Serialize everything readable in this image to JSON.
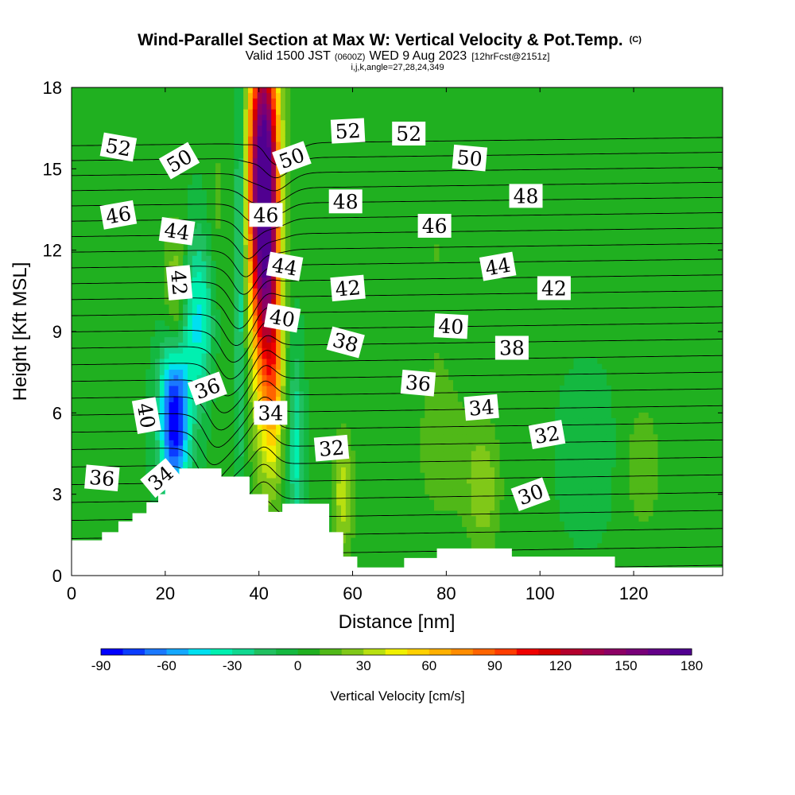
{
  "chart_data": {
    "type": "heatmap",
    "title": "Wind-Parallel Section at Max W: Vertical Velocity & Pot.Temp.",
    "title_mark": "(C)",
    "subtitle_main": "Valid 1500 JST",
    "subtitle_z": "(0600Z)",
    "subtitle_date": "WED 9 Aug 2023",
    "subtitle_fcst": "[12hrFcst@2151z]",
    "subtitle_ijk": "i,j,k,angle=27,28,24,349",
    "xlabel": "Distance [nm]",
    "ylabel": "Height [Kft MSL]",
    "xlim": [
      0,
      139
    ],
    "ylim": [
      0,
      18
    ],
    "x_ticks": [
      "0",
      "20",
      "40",
      "60",
      "80",
      "100",
      "120"
    ],
    "x_tick_values": [
      0,
      20,
      40,
      60,
      80,
      100,
      120
    ],
    "y_ticks": [
      "0",
      "3",
      "6",
      "9",
      "12",
      "15",
      "18"
    ],
    "y_tick_values": [
      0,
      3,
      6,
      9,
      12,
      15,
      18
    ],
    "colorbar": {
      "label": "Vertical Velocity [cm/s]",
      "tick_labels": [
        "-90",
        "-60",
        "-30",
        "0",
        "30",
        "60",
        "90",
        "120",
        "150",
        "180"
      ],
      "tick_values": [
        -90,
        -60,
        -30,
        0,
        30,
        60,
        90,
        120,
        150,
        180
      ],
      "min": -90,
      "max": 180,
      "step": 10,
      "colors": [
        "#0000ff",
        "#0a3cff",
        "#1a78ff",
        "#14a8ff",
        "#00e0f0",
        "#00f0b0",
        "#10d890",
        "#20c060",
        "#14b840",
        "#20b020",
        "#50b818",
        "#80c818",
        "#b8e010",
        "#f0f000",
        "#ffd000",
        "#ffb000",
        "#ff8c00",
        "#ff6400",
        "#ff3c00",
        "#f00000",
        "#d20000",
        "#b4002c",
        "#a0004c",
        "#8c0064",
        "#780078",
        "#640088",
        "#500090"
      ]
    },
    "background_velocity": 2,
    "velocity_features": [
      {
        "x": 22,
        "y": 5.8,
        "sx": 2.2,
        "sy": 2.0,
        "value": -95
      },
      {
        "x": 27,
        "y": 9.5,
        "sx": 3.0,
        "sy": 2.2,
        "value": -45
      },
      {
        "x": 36,
        "y": 12.5,
        "sx": 0.7,
        "sy": 6.0,
        "value": -35
      },
      {
        "x": 31,
        "y": 11.0,
        "sx": 1.5,
        "sy": 4.0,
        "value": 15
      },
      {
        "x": 22.5,
        "y": 10.0,
        "sx": 1.8,
        "sy": 2.0,
        "value": 40
      },
      {
        "x": 41,
        "y": 15.0,
        "sx": 2.2,
        "sy": 3.5,
        "value": 170
      },
      {
        "x": 41.5,
        "y": 10.0,
        "sx": 2.0,
        "sy": 4.0,
        "value": 80
      },
      {
        "x": 43.5,
        "y": 7.5,
        "sx": 1.2,
        "sy": 2.5,
        "value": 40
      },
      {
        "x": 48,
        "y": 4.5,
        "sx": 1.0,
        "sy": 2.5,
        "value": -35
      },
      {
        "x": 58,
        "y": 3.0,
        "sx": 1.5,
        "sy": 1.5,
        "value": 35
      },
      {
        "x": 88,
        "y": 3.2,
        "sx": 2.5,
        "sy": 1.6,
        "value": 25
      },
      {
        "x": 80,
        "y": 4.5,
        "sx": 5.0,
        "sy": 2.0,
        "value": 12
      },
      {
        "x": 110,
        "y": 4.5,
        "sx": 4.0,
        "sy": 2.0,
        "value": -10
      },
      {
        "x": 122,
        "y": 4.0,
        "sx": 3.0,
        "sy": 2.0,
        "value": 14
      },
      {
        "x": 78,
        "y": 12.0,
        "sx": 3.0,
        "sy": 5.0,
        "value": 8
      },
      {
        "x": 15,
        "y": 14.0,
        "sx": 3.0,
        "sy": 3.0,
        "value": 6
      }
    ],
    "terrain": [
      {
        "x": 0,
        "h": 1.3
      },
      {
        "x": 6.5,
        "h": 1.6
      },
      {
        "x": 10,
        "h": 2.0
      },
      {
        "x": 13,
        "h": 2.3
      },
      {
        "x": 16,
        "h": 2.7
      },
      {
        "x": 18.5,
        "h": 3.0
      },
      {
        "x": 20,
        "h": 3.6
      },
      {
        "x": 23,
        "h": 3.95
      },
      {
        "x": 32,
        "h": 3.65
      },
      {
        "x": 38,
        "h": 3.0
      },
      {
        "x": 42,
        "h": 2.35
      },
      {
        "x": 45,
        "h": 2.65
      },
      {
        "x": 55,
        "h": 1.6
      },
      {
        "x": 58,
        "h": 0.7
      },
      {
        "x": 61,
        "h": 0.3
      },
      {
        "x": 71,
        "h": 0.65
      },
      {
        "x": 78,
        "h": 1.0
      },
      {
        "x": 94,
        "h": 0.7
      },
      {
        "x": 116,
        "h": 0.3
      },
      {
        "x": 139,
        "h": 0.3
      }
    ],
    "isentropes": {
      "levels": [
        27,
        28,
        29,
        30,
        31,
        32,
        33,
        34,
        35,
        36,
        37,
        38,
        39,
        40,
        41,
        42,
        43,
        44,
        45,
        46,
        47,
        48,
        49,
        50,
        51,
        52,
        53
      ],
      "labels": [
        {
          "text": "52",
          "x": 10,
          "y": 15.8,
          "rot": 10
        },
        {
          "text": "50",
          "x": 23,
          "y": 15.3,
          "rot": -30
        },
        {
          "text": "50",
          "x": 47,
          "y": 15.4,
          "rot": -20
        },
        {
          "text": "52",
          "x": 59,
          "y": 16.4,
          "rot": -3
        },
        {
          "text": "52",
          "x": 72,
          "y": 16.3,
          "rot": 0
        },
        {
          "text": "50",
          "x": 85,
          "y": 15.4,
          "rot": 5
        },
        {
          "text": "48",
          "x": 58.5,
          "y": 13.8,
          "rot": 0
        },
        {
          "text": "48",
          "x": 97,
          "y": 14.0,
          "rot": 0
        },
        {
          "text": "46",
          "x": 10,
          "y": 13.3,
          "rot": -10
        },
        {
          "text": "46",
          "x": 41.5,
          "y": 13.3,
          "rot": 0
        },
        {
          "text": "46",
          "x": 77.5,
          "y": 12.9,
          "rot": 0
        },
        {
          "text": "44",
          "x": 22.5,
          "y": 12.7,
          "rot": 8
        },
        {
          "text": "44",
          "x": 45.5,
          "y": 11.4,
          "rot": 10
        },
        {
          "text": "44",
          "x": 91,
          "y": 11.4,
          "rot": -10
        },
        {
          "text": "42",
          "x": 23,
          "y": 10.8,
          "rot": 85
        },
        {
          "text": "42",
          "x": 59,
          "y": 10.6,
          "rot": -5
        },
        {
          "text": "42",
          "x": 103,
          "y": 10.6,
          "rot": 0
        },
        {
          "text": "40",
          "x": 45,
          "y": 9.5,
          "rot": 10
        },
        {
          "text": "40",
          "x": 81,
          "y": 9.2,
          "rot": 3
        },
        {
          "text": "40",
          "x": 16,
          "y": 5.9,
          "rot": 80
        },
        {
          "text": "38",
          "x": 58.5,
          "y": 8.6,
          "rot": 15
        },
        {
          "text": "38",
          "x": 94,
          "y": 8.4,
          "rot": 0
        },
        {
          "text": "36",
          "x": 29,
          "y": 6.9,
          "rot": -20
        },
        {
          "text": "36",
          "x": 74,
          "y": 7.1,
          "rot": 5
        },
        {
          "text": "36",
          "x": 6.5,
          "y": 3.6,
          "rot": 5
        },
        {
          "text": "34",
          "x": 42.5,
          "y": 6.0,
          "rot": 0
        },
        {
          "text": "34",
          "x": 87.5,
          "y": 6.2,
          "rot": -5
        },
        {
          "text": "34",
          "x": 19,
          "y": 3.6,
          "rot": -40
        },
        {
          "text": "32",
          "x": 55.5,
          "y": 4.7,
          "rot": -5
        },
        {
          "text": "32",
          "x": 101.5,
          "y": 5.2,
          "rot": -10
        },
        {
          "text": "30",
          "x": 98,
          "y": 3.0,
          "rot": -20
        }
      ]
    }
  }
}
